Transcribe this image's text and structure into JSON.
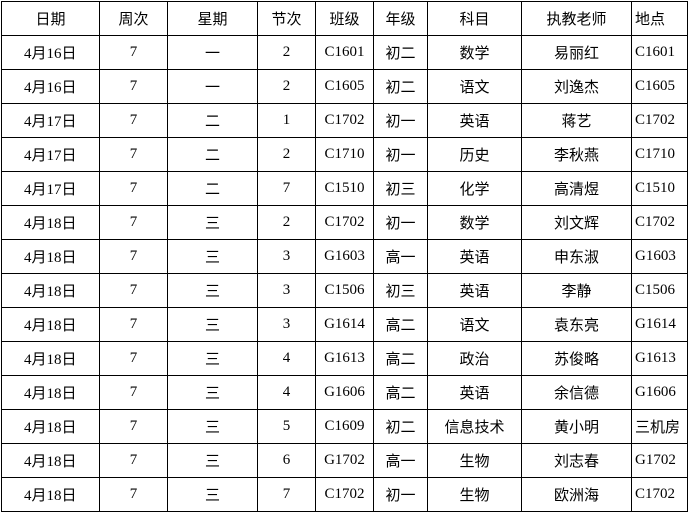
{
  "table": {
    "header": [
      "日期",
      "周次",
      "星期",
      "节次",
      "班级",
      "年级",
      "科目",
      "执教老师",
      "地点"
    ],
    "rows": [
      [
        "4月16日",
        "7",
        "一",
        "2",
        "C1601",
        "初二",
        "数学",
        "易丽红",
        "C1601"
      ],
      [
        "4月16日",
        "7",
        "一",
        "2",
        "C1605",
        "初二",
        "语文",
        "刘逸杰",
        "C1605"
      ],
      [
        "4月17日",
        "7",
        "二",
        "1",
        "C1702",
        "初一",
        "英语",
        "蒋艺",
        "C1702"
      ],
      [
        "4月17日",
        "7",
        "二",
        "2",
        "C1710",
        "初一",
        "历史",
        "李秋燕",
        "C1710"
      ],
      [
        "4月17日",
        "7",
        "二",
        "7",
        "C1510",
        "初三",
        "化学",
        "高清煜",
        "C1510"
      ],
      [
        "4月18日",
        "7",
        "三",
        "2",
        "C1702",
        "初一",
        "数学",
        "刘文辉",
        "C1702"
      ],
      [
        "4月18日",
        "7",
        "三",
        "3",
        "G1603",
        "高一",
        "英语",
        "申东淑",
        "G1603"
      ],
      [
        "4月18日",
        "7",
        "三",
        "3",
        "C1506",
        "初三",
        "英语",
        "李静",
        "C1506"
      ],
      [
        "4月18日",
        "7",
        "三",
        "3",
        "G1614",
        "高二",
        "语文",
        "袁东亮",
        "G1614"
      ],
      [
        "4月18日",
        "7",
        "三",
        "4",
        "G1613",
        "高二",
        "政治",
        "苏俊略",
        "G1613"
      ],
      [
        "4月18日",
        "7",
        "三",
        "4",
        "G1606",
        "高二",
        "英语",
        "余信德",
        "G1606"
      ],
      [
        "4月18日",
        "7",
        "三",
        "5",
        "C1609",
        "初二",
        "信息技术",
        "黄小明",
        "三机房"
      ],
      [
        "4月18日",
        "7",
        "三",
        "6",
        "G1702",
        "高一",
        "生物",
        "刘志春",
        "G1702"
      ],
      [
        "4月18日",
        "7",
        "三",
        "7",
        "C1702",
        "初一",
        "生物",
        "欧洲海",
        "C1702"
      ]
    ]
  }
}
